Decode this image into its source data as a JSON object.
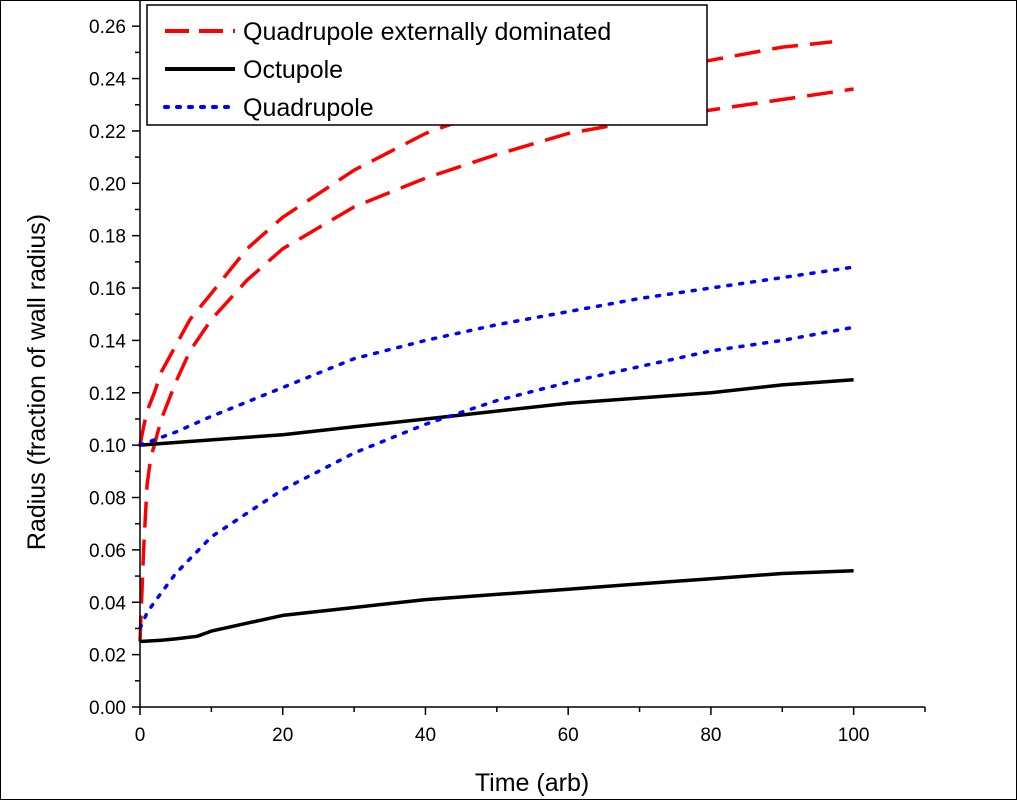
{
  "chart_data": {
    "type": "line",
    "title": "",
    "xlabel": "Time (arb)",
    "ylabel": "Radius (fraction of wall radius)",
    "xlim": [
      0,
      110
    ],
    "ylim": [
      0,
      0.27
    ],
    "x_ticks": [
      0,
      20,
      40,
      60,
      80,
      100
    ],
    "x_tick_labels": [
      "0",
      "20",
      "40",
      "60",
      "80",
      "100"
    ],
    "y_ticks": [
      0,
      0.02,
      0.04,
      0.06,
      0.08,
      0.1,
      0.12,
      0.14,
      0.16,
      0.18,
      0.2,
      0.22,
      0.24,
      0.26
    ],
    "y_tick_labels": [
      "0.00",
      "0.02",
      "0.04",
      "0.06",
      "0.08",
      "0.10",
      "0.12",
      "0.14",
      "0.16",
      "0.18",
      "0.20",
      "0.22",
      "0.24",
      "0.26"
    ],
    "grid": false,
    "legend_position": "top-left",
    "legend": [
      {
        "label": "Quadrupole externally dominated",
        "color": "#ff0000",
        "style": "dashed"
      },
      {
        "label": "Octupole",
        "color": "#000000",
        "style": "solid"
      },
      {
        "label": "Quadrupole",
        "color": "#0000ff",
        "style": "dotted"
      }
    ],
    "series": [
      {
        "legend_index": 0,
        "color": "#ff0000",
        "style": "dashed",
        "x": [
          0,
          0.5,
          1,
          2,
          3,
          5,
          7,
          10,
          15,
          20,
          30,
          40,
          50,
          60,
          70,
          80,
          90,
          97
        ],
        "y": [
          0.1,
          0.107,
          0.113,
          0.12,
          0.128,
          0.138,
          0.148,
          0.158,
          0.175,
          0.187,
          0.205,
          0.219,
          0.229,
          0.236,
          0.242,
          0.247,
          0.252,
          0.254
        ]
      },
      {
        "legend_index": 0,
        "color": "#ff0000",
        "style": "dashed",
        "x": [
          0,
          0.5,
          1,
          1.5,
          2,
          3,
          5,
          7,
          10,
          15,
          20,
          30,
          40,
          50,
          60,
          70,
          80,
          90,
          100
        ],
        "y": [
          0.025,
          0.06,
          0.085,
          0.095,
          0.1,
          0.11,
          0.124,
          0.136,
          0.148,
          0.163,
          0.175,
          0.191,
          0.202,
          0.211,
          0.219,
          0.224,
          0.228,
          0.232,
          0.236
        ]
      },
      {
        "legend_index": 1,
        "color": "#000000",
        "style": "solid",
        "x": [
          0,
          5,
          10,
          20,
          30,
          40,
          50,
          60,
          70,
          80,
          90,
          100
        ],
        "y": [
          0.1,
          0.101,
          0.102,
          0.104,
          0.107,
          0.11,
          0.113,
          0.116,
          0.118,
          0.12,
          0.123,
          0.125
        ]
      },
      {
        "legend_index": 1,
        "color": "#000000",
        "style": "solid",
        "x": [
          0,
          3,
          5,
          8,
          10,
          15,
          20,
          30,
          40,
          50,
          60,
          70,
          80,
          90,
          100
        ],
        "y": [
          0.025,
          0.0255,
          0.026,
          0.027,
          0.029,
          0.032,
          0.035,
          0.038,
          0.041,
          0.043,
          0.045,
          0.047,
          0.049,
          0.051,
          0.052
        ]
      },
      {
        "legend_index": 2,
        "color": "#0000ff",
        "style": "dotted",
        "x": [
          0,
          2,
          5,
          10,
          20,
          30,
          40,
          50,
          60,
          70,
          80,
          90,
          100
        ],
        "y": [
          0.1,
          0.102,
          0.105,
          0.111,
          0.122,
          0.133,
          0.14,
          0.146,
          0.151,
          0.156,
          0.16,
          0.164,
          0.168
        ]
      },
      {
        "legend_index": 2,
        "color": "#0000ff",
        "style": "dotted",
        "x": [
          0,
          1,
          2,
          5,
          10,
          15,
          20,
          30,
          40,
          50,
          60,
          70,
          80,
          90,
          100
        ],
        "y": [
          0.03,
          0.036,
          0.04,
          0.051,
          0.065,
          0.074,
          0.083,
          0.097,
          0.108,
          0.117,
          0.124,
          0.13,
          0.136,
          0.14,
          0.145
        ]
      }
    ]
  }
}
